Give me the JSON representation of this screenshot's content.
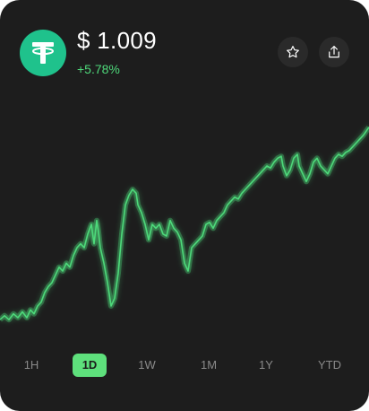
{
  "coin": {
    "icon": "tether-icon",
    "price": "$ 1.009",
    "change": "+5.78%",
    "accent_color": "#1fc28c",
    "positive_color": "#4ed97a"
  },
  "actions": {
    "favorite_icon": "star-icon",
    "share_icon": "share-icon"
  },
  "timeframes": [
    {
      "label": "1H",
      "active": false
    },
    {
      "label": "1D",
      "active": true
    },
    {
      "label": "1W",
      "active": false
    },
    {
      "label": "1M",
      "active": false
    },
    {
      "label": "1Y",
      "active": false
    },
    {
      "label": "YTD",
      "active": false
    }
  ],
  "chart_data": {
    "type": "line",
    "title": "",
    "xlabel": "",
    "ylabel": "",
    "line_color": "#4ed97a",
    "x": [
      0,
      5,
      10,
      15,
      20,
      25,
      30,
      34,
      38,
      42,
      46,
      50,
      54,
      58,
      62,
      66,
      70,
      74,
      78,
      82,
      86,
      90,
      94,
      98,
      102,
      105,
      108,
      110,
      112,
      116,
      120,
      124,
      126,
      128,
      132,
      136,
      140,
      144,
      148,
      152,
      154,
      158,
      162,
      166,
      168,
      170,
      174,
      178,
      182,
      186,
      190,
      194,
      198,
      202,
      206,
      210,
      212,
      214,
      218,
      222,
      226,
      230,
      234,
      238,
      242,
      246,
      250,
      254,
      258,
      262,
      266,
      270,
      274,
      278,
      282,
      286,
      290,
      294,
      298,
      302,
      306,
      310,
      314,
      316,
      320,
      324,
      328,
      332,
      334,
      338,
      342,
      346,
      350,
      354,
      358,
      362,
      366,
      370,
      374,
      378,
      382,
      386,
      390,
      394,
      398,
      402,
      406,
      412
    ],
    "y": [
      0.11,
      0.13,
      0.11,
      0.14,
      0.12,
      0.15,
      0.12,
      0.16,
      0.14,
      0.18,
      0.2,
      0.25,
      0.28,
      0.3,
      0.34,
      0.38,
      0.36,
      0.4,
      0.38,
      0.44,
      0.48,
      0.5,
      0.48,
      0.55,
      0.6,
      0.5,
      0.62,
      0.56,
      0.48,
      0.4,
      0.3,
      0.18,
      0.2,
      0.22,
      0.35,
      0.55,
      0.7,
      0.75,
      0.78,
      0.76,
      0.7,
      0.66,
      0.6,
      0.52,
      0.56,
      0.6,
      0.58,
      0.6,
      0.55,
      0.54,
      0.62,
      0.58,
      0.56,
      0.52,
      0.4,
      0.36,
      0.42,
      0.48,
      0.5,
      0.52,
      0.54,
      0.6,
      0.61,
      0.58,
      0.62,
      0.64,
      0.66,
      0.7,
      0.72,
      0.74,
      0.73,
      0.76,
      0.78,
      0.8,
      0.82,
      0.84,
      0.86,
      0.88,
      0.9,
      0.89,
      0.92,
      0.94,
      0.95,
      0.9,
      0.85,
      0.88,
      0.94,
      0.96,
      0.9,
      0.86,
      0.82,
      0.86,
      0.92,
      0.94,
      0.9,
      0.88,
      0.86,
      0.9,
      0.94,
      0.96,
      0.95,
      0.97,
      0.98,
      1.0,
      1.02,
      1.04,
      1.06,
      1.1
    ],
    "xlim": [
      0,
      412
    ],
    "ylim": [
      0,
      1.2
    ],
    "grid": false,
    "legend": "none"
  }
}
